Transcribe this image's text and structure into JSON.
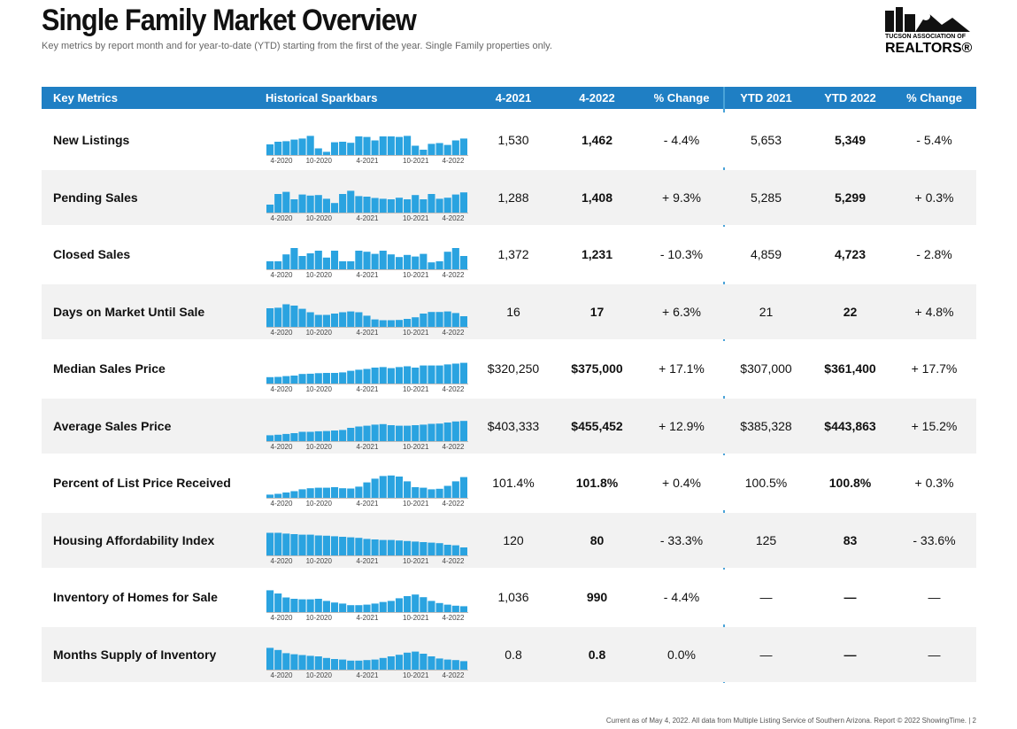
{
  "header": {
    "title": "Single Family Market Overview",
    "subtitle": "Key metrics by report month and for year-to-date (YTD) starting from the first of the year. Single Family properties only.",
    "logo_line1": "TUCSON ASSOCIATION OF",
    "logo_line2": "REALTORS®"
  },
  "table": {
    "columns": [
      "Key Metrics",
      "Historical Sparkbars",
      "4-2021",
      "4-2022",
      "% Change",
      "YTD 2021",
      "YTD 2022",
      "% Change"
    ],
    "sparkbar_labels": [
      "4-2020",
      "10-2020",
      "4-2021",
      "10-2021",
      "4-2022"
    ],
    "rows": [
      {
        "metric": "New Listings",
        "sparkbars": [
          40,
          50,
          52,
          58,
          62,
          72,
          25,
          12,
          48,
          50,
          46,
          70,
          68,
          55,
          70,
          70,
          68,
          72,
          35,
          20,
          42,
          45,
          38,
          55,
          62
        ],
        "cells": [
          "1,530",
          "1,462",
          "- 4.4%",
          "5,653",
          "5,349",
          "- 5.4%"
        ]
      },
      {
        "metric": "Pending Sales",
        "sparkbars": [
          30,
          70,
          78,
          50,
          68,
          64,
          66,
          52,
          36,
          70,
          82,
          62,
          60,
          55,
          52,
          50,
          56,
          50,
          66,
          50,
          70,
          52,
          56,
          68,
          76
        ],
        "cells": [
          "1,288",
          "1,408",
          "+ 9.3%",
          "5,285",
          "5,299",
          "+ 0.3%"
        ]
      },
      {
        "metric": "Closed Sales",
        "sparkbars": [
          30,
          30,
          56,
          80,
          50,
          60,
          70,
          44,
          70,
          30,
          30,
          70,
          66,
          58,
          70,
          56,
          46,
          54,
          48,
          58,
          26,
          30,
          66,
          80,
          50
        ],
        "cells": [
          "1,372",
          "1,231",
          "- 10.3%",
          "4,859",
          "4,723",
          "- 2.8%"
        ]
      },
      {
        "metric": "Days on Market Until Sale",
        "sparkbars": [
          70,
          72,
          85,
          80,
          68,
          55,
          45,
          45,
          50,
          55,
          58,
          55,
          42,
          28,
          25,
          25,
          26,
          30,
          36,
          50,
          56,
          56,
          58,
          52,
          40
        ],
        "cells": [
          "16",
          "17",
          "+ 6.3%",
          "21",
          "22",
          "+ 4.8%"
        ]
      },
      {
        "metric": "Median Sales Price",
        "sparkbars": [
          24,
          25,
          28,
          30,
          36,
          37,
          39,
          40,
          40,
          42,
          48,
          52,
          55,
          60,
          62,
          58,
          62,
          65,
          60,
          68,
          68,
          68,
          72,
          75,
          78
        ],
        "cells": [
          "$320,250",
          "$375,000",
          "+ 17.1%",
          "$307,000",
          "$361,400",
          "+ 17.7%"
        ]
      },
      {
        "metric": "Average Sales Price",
        "sparkbars": [
          22,
          24,
          27,
          30,
          35,
          35,
          37,
          38,
          40,
          42,
          50,
          55,
          58,
          62,
          64,
          60,
          58,
          58,
          60,
          62,
          65,
          66,
          70,
          74,
          76
        ],
        "cells": [
          "$403,333",
          "$455,452",
          "+ 12.9%",
          "$385,328",
          "$443,863",
          "+ 15.2%"
        ]
      },
      {
        "metric": "Percent of List Price Received",
        "sparkbars": [
          12,
          15,
          20,
          25,
          32,
          36,
          38,
          38,
          40,
          36,
          35,
          42,
          58,
          72,
          82,
          84,
          80,
          62,
          40,
          38,
          32,
          34,
          45,
          62,
          78
        ],
        "cells": [
          "101.4%",
          "101.8%",
          "+ 0.4%",
          "100.5%",
          "100.8%",
          "+ 0.3%"
        ]
      },
      {
        "metric": "Housing Affordability Index",
        "sparkbars": [
          85,
          85,
          82,
          80,
          78,
          78,
          75,
          74,
          72,
          70,
          68,
          66,
          62,
          60,
          58,
          58,
          56,
          54,
          52,
          50,
          48,
          46,
          40,
          38,
          30
        ],
        "cells": [
          "120",
          "80",
          "- 33.3%",
          "125",
          "83",
          "- 33.6%"
        ]
      },
      {
        "metric": "Inventory of Homes for Sale",
        "sparkbars": [
          82,
          70,
          55,
          50,
          48,
          48,
          50,
          42,
          36,
          32,
          26,
          26,
          28,
          32,
          38,
          42,
          52,
          60,
          66,
          56,
          42,
          34,
          28,
          24,
          22
        ],
        "cells": [
          "1,036",
          "990",
          "- 4.4%",
          "—",
          "—",
          "—"
        ]
      },
      {
        "metric": "Months Supply of Inventory",
        "sparkbars": [
          82,
          74,
          62,
          58,
          55,
          52,
          50,
          44,
          40,
          38,
          34,
          34,
          36,
          38,
          44,
          50,
          56,
          64,
          68,
          60,
          50,
          42,
          38,
          36,
          32
        ],
        "cells": [
          "0.8",
          "0.8",
          "0.0%",
          "—",
          "—",
          "—"
        ]
      }
    ]
  },
  "footer": "Current as of May 4, 2022. All data from Multiple Listing Service of Southern Arizona. Report © 2022 ShowingTime.  |  2"
}
